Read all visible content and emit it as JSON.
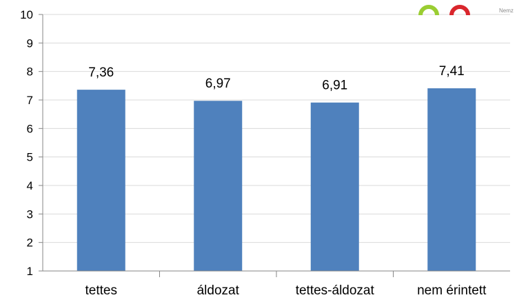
{
  "logo": {
    "text": "Nemz",
    "arc_colors": [
      "#9acd32",
      "#d9262c"
    ],
    "text_color": "#8a8a8a"
  },
  "chart_data": {
    "type": "bar",
    "categories": [
      "tettes",
      "áldozat",
      "tettes-áldozat",
      "nem érintett"
    ],
    "values": [
      7.36,
      6.97,
      6.91,
      7.41
    ],
    "data_labels": [
      "7,36",
      "6,97",
      "6,91",
      "7,41"
    ],
    "title": "",
    "xlabel": "",
    "ylabel": "",
    "ylim": [
      1,
      10
    ],
    "yticks": [
      1,
      2,
      3,
      4,
      5,
      6,
      7,
      8,
      9,
      10
    ],
    "grid": true,
    "legend": "none",
    "bar_color": "#4f81bd",
    "grid_color": "#d9d9d9",
    "axis_color": "#868686"
  }
}
